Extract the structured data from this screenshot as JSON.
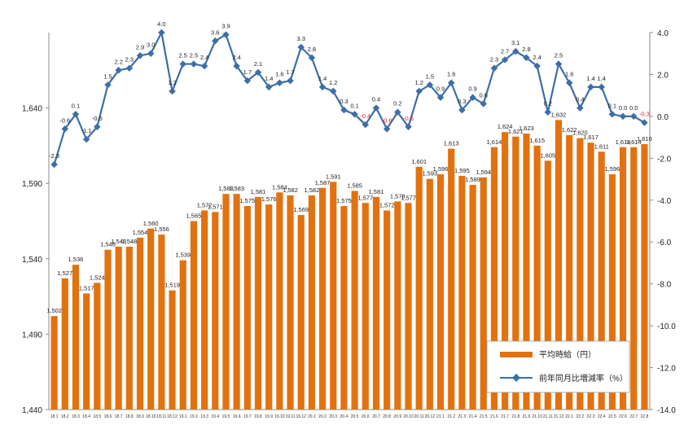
{
  "chart_data": {
    "type": "bar+line",
    "categories": [
      "18.1",
      "18.2",
      "18.3",
      "18.4",
      "18.5",
      "18.6",
      "18.7",
      "18.8",
      "18.9",
      "18.10",
      "18.11",
      "18.12",
      "19.1",
      "19.2",
      "19.3",
      "19.4",
      "19.5",
      "19.6",
      "19.7",
      "19.8",
      "19.9",
      "19.10",
      "19.11",
      "19.12",
      "20.1",
      "20.2",
      "20.3",
      "20.4",
      "20.5",
      "20.6",
      "20.7",
      "20.8",
      "20.9",
      "20.10",
      "20.11",
      "20.12",
      "21.1",
      "21.2",
      "21.3",
      "21.4",
      "21.5",
      "21.6",
      "21.7",
      "21.8",
      "21.9",
      "21.10",
      "21.11",
      "21.12",
      "22.1",
      "22.2",
      "22.3",
      "22.4",
      "22.5",
      "22.6",
      "22.7",
      "22.8"
    ],
    "series": [
      {
        "name": "平均時給（円）",
        "type": "bar",
        "axis": "left",
        "color": "#e2720f",
        "values": [
          1502,
          1527,
          1536,
          1517,
          1524,
          1546,
          1548,
          1548,
          1554,
          1560,
          1556,
          1519,
          1539,
          1565,
          1572,
          1571,
          1583,
          1583,
          1575,
          1581,
          1576,
          1584,
          1582,
          1569,
          1582,
          1587,
          1591,
          1575,
          1585,
          1577,
          1581,
          1572,
          1578,
          1577,
          1601,
          1593,
          1596,
          1613,
          1595,
          1589,
          1594,
          1614,
          1624,
          1621,
          1623,
          1615,
          1605,
          1632,
          1622,
          1620,
          1617,
          1611,
          1596,
          1614,
          1614,
          1616
        ],
        "labels": [
          "1,502",
          "1,527",
          "1,536",
          "1,517",
          "1,524",
          "1,546",
          "1,548",
          "1,548",
          "1,554",
          "1,560",
          "1,556",
          "1,519",
          "1,539",
          "1,565",
          "1,572",
          "1,571",
          "1,583",
          "1,583",
          "1,575",
          "1,581",
          "1,576",
          "1,584",
          "1,582",
          "1,569",
          "1,582",
          "1,587",
          "1,591",
          "1,575",
          "1,585",
          "1,577",
          "1,581",
          "1,572",
          "1,578",
          "1,577",
          "1,601",
          "1,593",
          "1,596",
          "1,613",
          "1,595",
          "1,589",
          "1,594",
          "1,614",
          "1,624",
          "1,621",
          "1,623",
          "1,615",
          "1,605",
          "1,632",
          "1,622",
          "1,620",
          "1,617",
          "1,611",
          "1,596",
          "1,614",
          "1,614",
          "1,616"
        ]
      },
      {
        "name": "前年同月比増減率（%）",
        "type": "line",
        "axis": "right",
        "color": "#3d6ea8",
        "negative_label_color": "#e8202a",
        "values": [
          -2.3,
          -0.6,
          0.1,
          -1.1,
          -0.5,
          1.5,
          2.2,
          2.3,
          2.9,
          3.0,
          4.0,
          1.2,
          2.5,
          2.5,
          2.4,
          3.6,
          3.9,
          2.4,
          1.7,
          2.1,
          1.4,
          1.6,
          1.7,
          3.3,
          2.8,
          1.4,
          1.2,
          0.3,
          0.1,
          -0.4,
          0.4,
          -0.6,
          0.2,
          -0.5,
          1.2,
          1.5,
          0.9,
          1.6,
          0.3,
          0.9,
          0.6,
          2.3,
          2.7,
          3.1,
          2.8,
          2.4,
          0.2,
          2.5,
          1.6,
          0.4,
          1.4,
          1.4,
          0.1,
          0.0,
          0.0,
          -0.3
        ],
        "labels": [
          "-2.3",
          "-0.6",
          "0.1",
          "-1.1",
          "-0.5",
          "1.5",
          "2.2",
          "2.3",
          "2.9",
          "3.0",
          "4.0",
          "1.2",
          "2.5",
          "2.5",
          "2.4",
          "3.6",
          "3.9",
          "2.4",
          "1.7",
          "2.1",
          "1.4",
          "1.6",
          "1.7",
          "3.3",
          "2.8",
          "1.4",
          "1.2",
          "0.3",
          "0.1",
          "-0.4",
          "0.4",
          "-0.6",
          "0.2",
          "-0.5",
          "1.2",
          "1.5",
          "0.9",
          "1.6",
          "0.3",
          "0.9",
          "0.6",
          "2.3",
          "2.7",
          "3.1",
          "2.8",
          "2.4",
          "0.2",
          "2.5",
          "1.6",
          "0.4",
          "1.4",
          "1.4",
          "0.1",
          "0.0",
          "0.0",
          "-0.3"
        ]
      }
    ],
    "left_axis": {
      "ylim": [
        1440,
        1690
      ],
      "ticks": [
        "1,440",
        "1,490",
        "1,540",
        "1,590",
        "1,640"
      ],
      "tick_values": [
        1440,
        1490,
        1540,
        1590,
        1640
      ]
    },
    "right_axis": {
      "ylim": [
        -14.0,
        4.0
      ],
      "ticks": [
        "4.0",
        "2.0",
        "0.0",
        "-2.0",
        "-4.0",
        "-6.0",
        "-8.0",
        "-10.0",
        "-12.0",
        "-14.0"
      ],
      "tick_values": [
        4,
        2,
        0,
        -2,
        -4,
        -6,
        -8,
        -10,
        -12,
        -14
      ]
    },
    "legend": {
      "placement": "bottom-right"
    },
    "grid": false
  }
}
